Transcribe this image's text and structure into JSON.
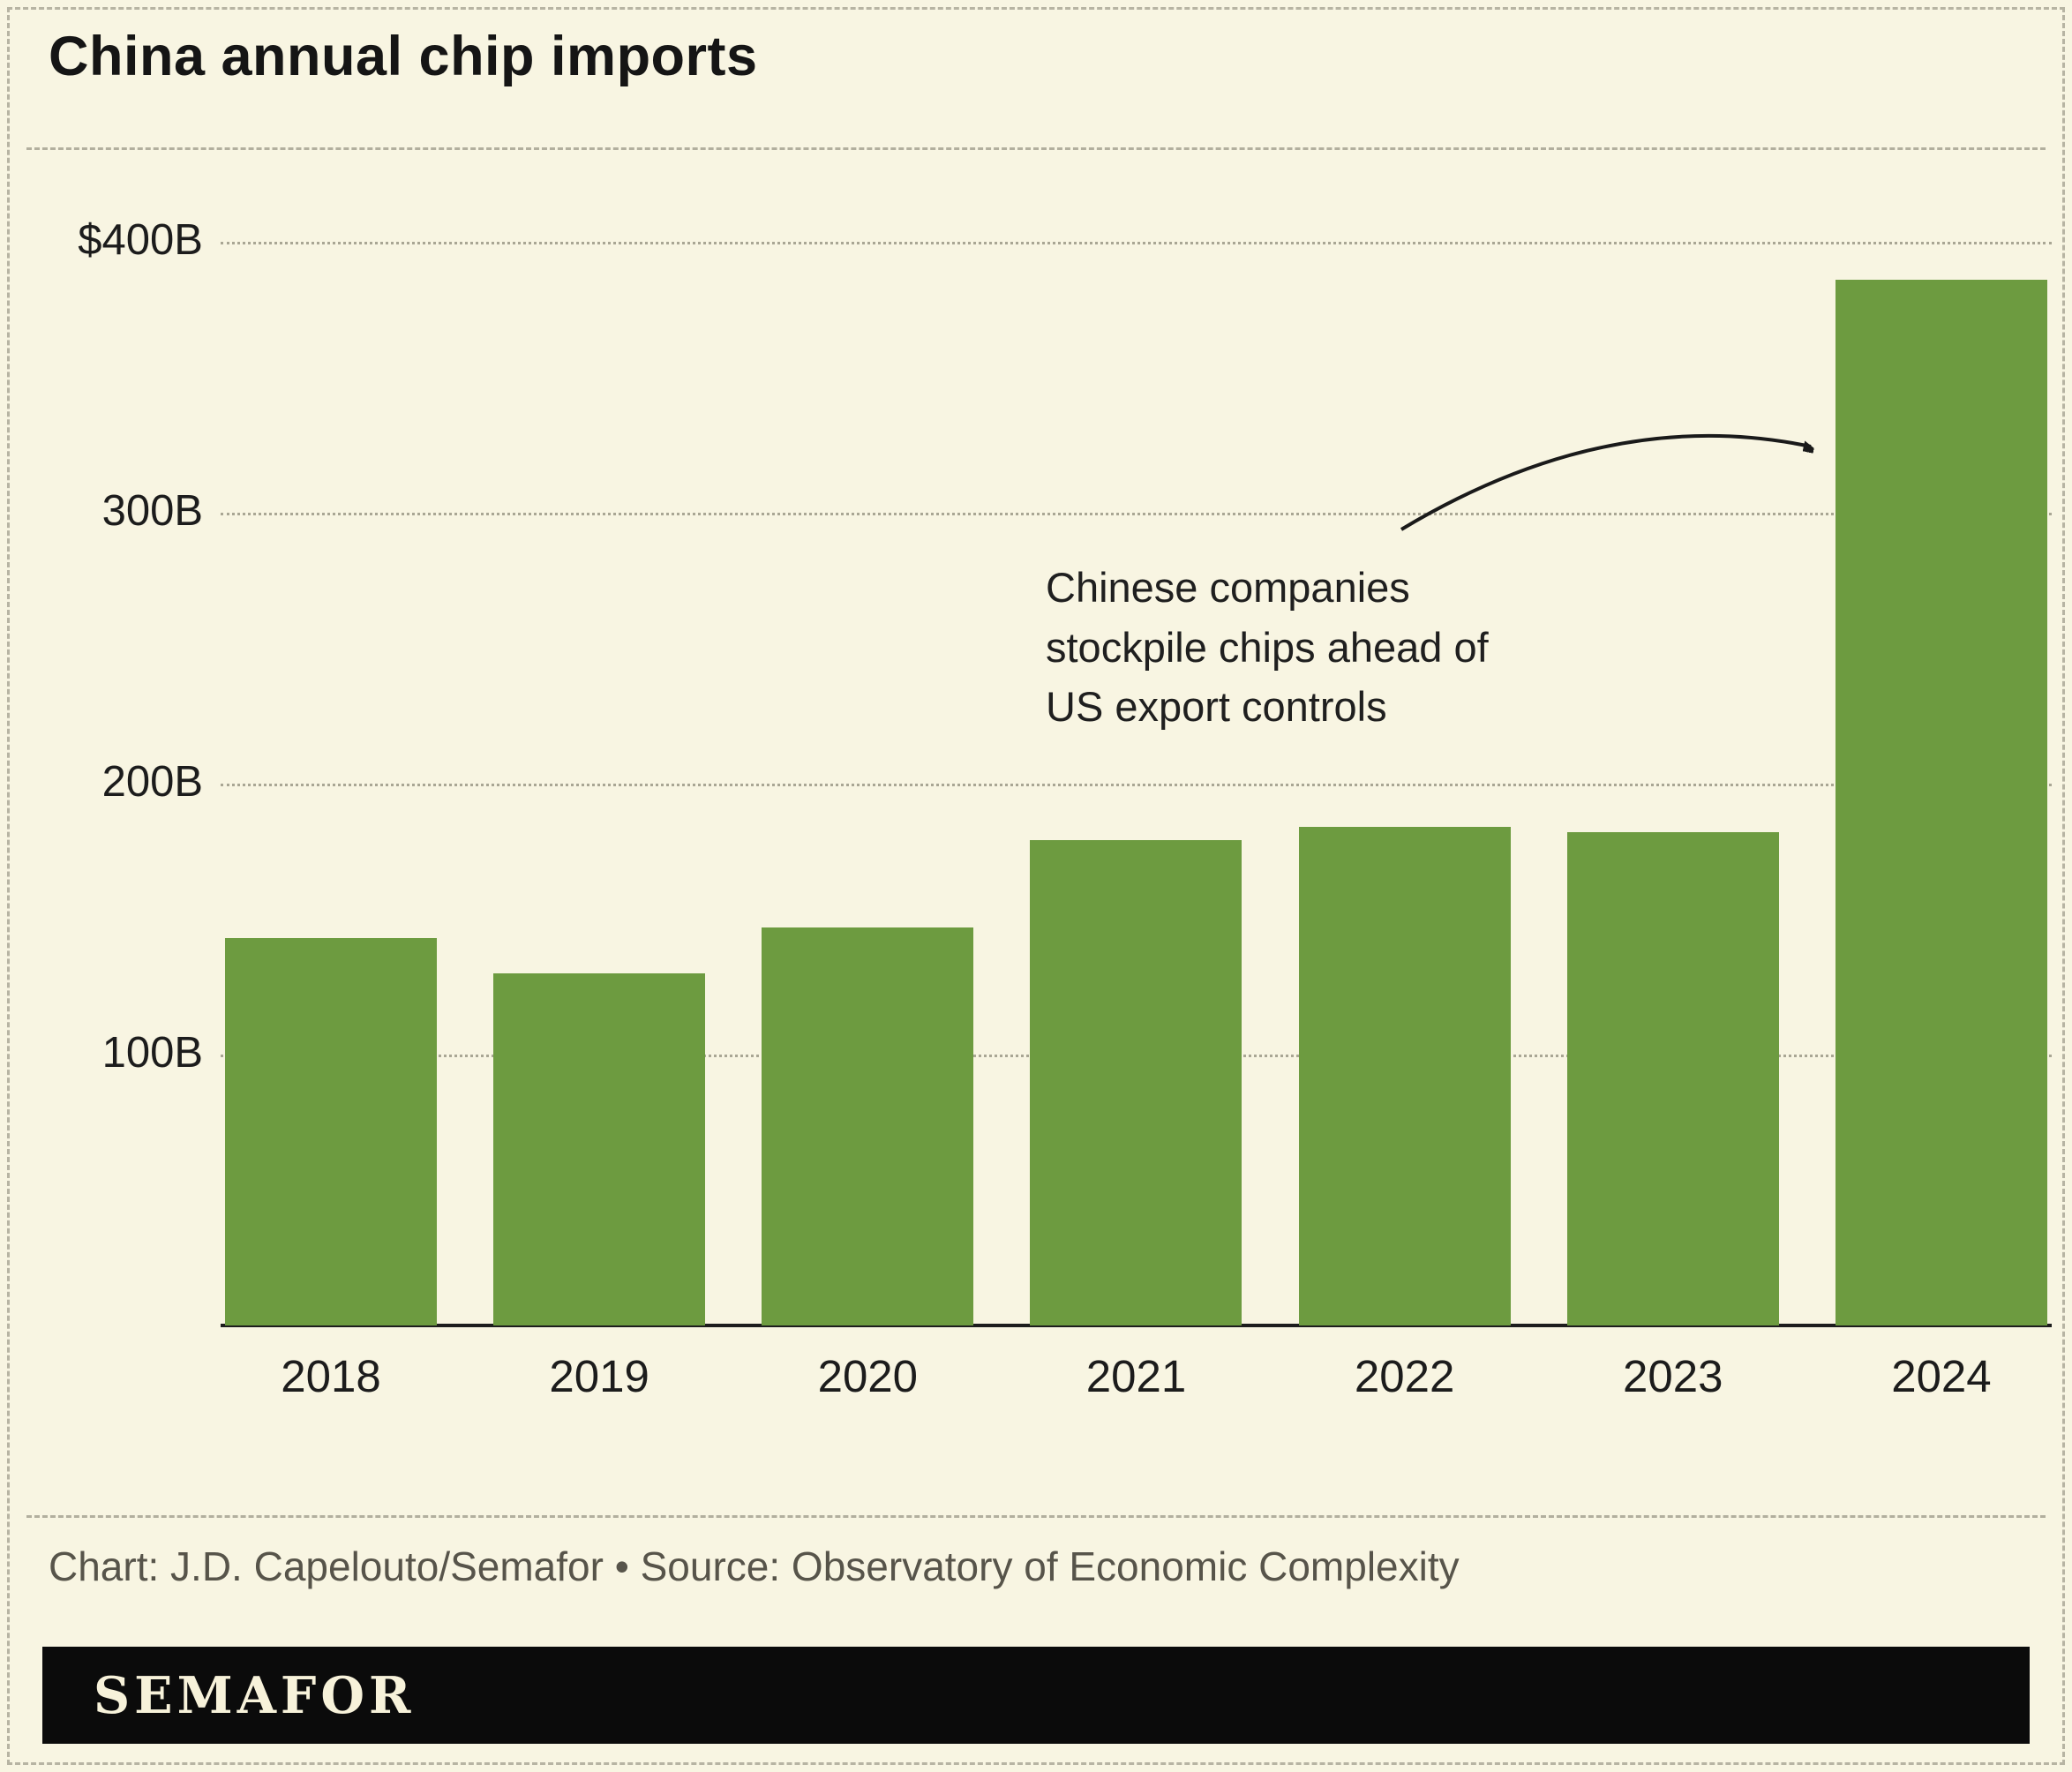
{
  "title": "China annual chip imports",
  "annotation": {
    "lines": [
      "Chinese companies",
      "stockpile chips ahead of",
      "US export controls"
    ]
  },
  "footer": {
    "credit": "Chart: J.D. Capelouto/Semafor • Source: Observatory of Economic Complexity"
  },
  "logo": "SEMAFOR",
  "colors": {
    "background": "#f8f5e2",
    "bar": "#6d9b40",
    "text": "#1c1c1c",
    "grid": "#a9a694",
    "footer_text": "#57544a",
    "logo_bg": "#0b0b0b",
    "logo_text": "#f7f2da"
  },
  "chart_data": {
    "type": "bar",
    "categories": [
      "2018",
      "2019",
      "2020",
      "2021",
      "2022",
      "2023",
      "2024"
    ],
    "values": [
      143,
      130,
      147,
      179,
      184,
      182,
      386
    ],
    "title": "China annual chip imports",
    "xlabel": "",
    "ylabel": "US dollars (billions)",
    "ylim": [
      0,
      400
    ],
    "yticks": [
      {
        "value": 400,
        "label": "$400B"
      },
      {
        "value": 300,
        "label": "300B"
      },
      {
        "value": 200,
        "label": "200B"
      },
      {
        "value": 100,
        "label": "100B"
      }
    ],
    "grid": true,
    "legend": false,
    "annotation": "Chinese companies stockpile chips ahead of US export controls (points at 2024 bar)"
  }
}
